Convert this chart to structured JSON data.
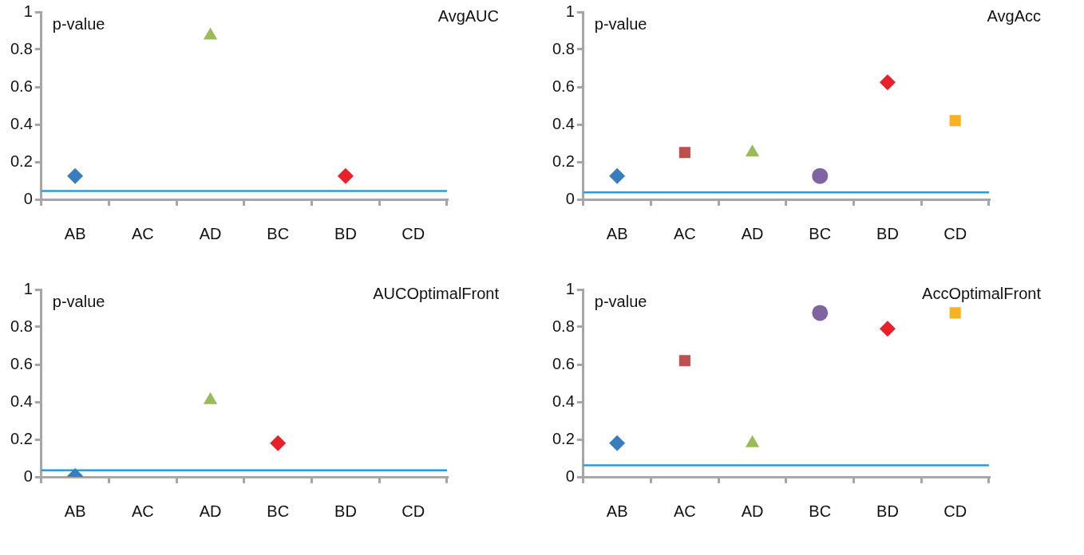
{
  "chart_data": [
    {
      "type": "scatter",
      "title": "AvgAUC",
      "ylabel": "p-value",
      "categories": [
        "AB",
        "AC",
        "AD",
        "BC",
        "BD",
        "CD"
      ],
      "ylim": [
        0,
        1
      ],
      "yticks": [
        0,
        0.2,
        0.4,
        0.6,
        0.8,
        1
      ],
      "grid": false,
      "legend": false,
      "series": [
        {
          "color": "#3a7dbf",
          "marker": "diamond",
          "values": [
            0.125,
            null,
            null,
            null,
            null,
            null
          ]
        },
        {
          "color": "#9bbb59",
          "marker": "triangle",
          "values": [
            null,
            null,
            0.875,
            null,
            null,
            null
          ]
        },
        {
          "color": "#e8202a",
          "marker": "diamond",
          "values": [
            null,
            null,
            null,
            null,
            0.125,
            null
          ]
        }
      ],
      "ref_lines": [
        {
          "axis": "y",
          "value": 0.045,
          "color": "#2e9ad6"
        }
      ]
    },
    {
      "type": "scatter",
      "title": "AvgAcc",
      "ylabel": "p-value",
      "categories": [
        "AB",
        "AC",
        "AD",
        "BC",
        "BD",
        "CD"
      ],
      "ylim": [
        0,
        1
      ],
      "yticks": [
        0,
        0.2,
        0.4,
        0.6,
        0.8,
        1
      ],
      "grid": false,
      "legend": false,
      "series": [
        {
          "color": "#3a7dbf",
          "marker": "diamond",
          "values": [
            0.125,
            null,
            null,
            null,
            null,
            null
          ]
        },
        {
          "color": "#c0504d",
          "marker": "square",
          "values": [
            null,
            0.25,
            null,
            null,
            null,
            null
          ]
        },
        {
          "color": "#9bbb59",
          "marker": "triangle",
          "values": [
            null,
            null,
            0.25,
            null,
            null,
            null
          ]
        },
        {
          "color": "#8064a2",
          "marker": "circle",
          "values": [
            null,
            null,
            null,
            0.125,
            null,
            null
          ]
        },
        {
          "color": "#e8202a",
          "marker": "diamond",
          "values": [
            null,
            null,
            null,
            null,
            0.625,
            null
          ]
        },
        {
          "color": "#f6b221",
          "marker": "square",
          "values": [
            null,
            null,
            null,
            null,
            null,
            0.42
          ]
        }
      ],
      "ref_lines": [
        {
          "axis": "y",
          "value": 0.037,
          "color": "#2e9ad6"
        }
      ]
    },
    {
      "type": "scatter",
      "title": "AUCOptimalFront",
      "ylabel": "p-value",
      "categories": [
        "AB",
        "AC",
        "AD",
        "BC",
        "BD",
        "CD"
      ],
      "ylim": [
        0,
        1
      ],
      "yticks": [
        0,
        0.2,
        0.4,
        0.6,
        0.8,
        1
      ],
      "grid": false,
      "legend": false,
      "series": [
        {
          "color": "#3a7dbf",
          "marker": "diamond",
          "values": [
            0.004,
            null,
            null,
            null,
            null,
            null
          ]
        },
        {
          "color": "#9bbb59",
          "marker": "triangle",
          "values": [
            null,
            null,
            0.41,
            null,
            null,
            null
          ]
        },
        {
          "color": "#e8202a",
          "marker": "diamond",
          "values": [
            null,
            null,
            null,
            0.18,
            null,
            null
          ]
        }
      ],
      "ref_lines": [
        {
          "axis": "y",
          "value": 0.035,
          "color": "#2e9ad6"
        }
      ]
    },
    {
      "type": "scatter",
      "title": "AccOptimalFront",
      "ylabel": "p-value",
      "categories": [
        "AB",
        "AC",
        "AD",
        "BC",
        "BD",
        "CD"
      ],
      "ylim": [
        0,
        1
      ],
      "yticks": [
        0,
        0.2,
        0.4,
        0.6,
        0.8,
        1
      ],
      "grid": false,
      "legend": false,
      "series": [
        {
          "color": "#3a7dbf",
          "marker": "diamond",
          "values": [
            0.18,
            null,
            null,
            null,
            null,
            null
          ]
        },
        {
          "color": "#c0504d",
          "marker": "square",
          "values": [
            null,
            0.62,
            null,
            null,
            null,
            null
          ]
        },
        {
          "color": "#9bbb59",
          "marker": "triangle",
          "values": [
            null,
            null,
            0.18,
            null,
            null,
            null
          ]
        },
        {
          "color": "#8064a2",
          "marker": "circle",
          "values": [
            null,
            null,
            null,
            0.875,
            null,
            null
          ]
        },
        {
          "color": "#e8202a",
          "marker": "diamond",
          "values": [
            null,
            null,
            null,
            null,
            0.79,
            null
          ]
        },
        {
          "color": "#f6b221",
          "marker": "square",
          "values": [
            null,
            null,
            null,
            null,
            null,
            0.875
          ]
        }
      ],
      "ref_lines": [
        {
          "axis": "y",
          "value": 0.062,
          "color": "#2e9ad6"
        }
      ]
    }
  ]
}
